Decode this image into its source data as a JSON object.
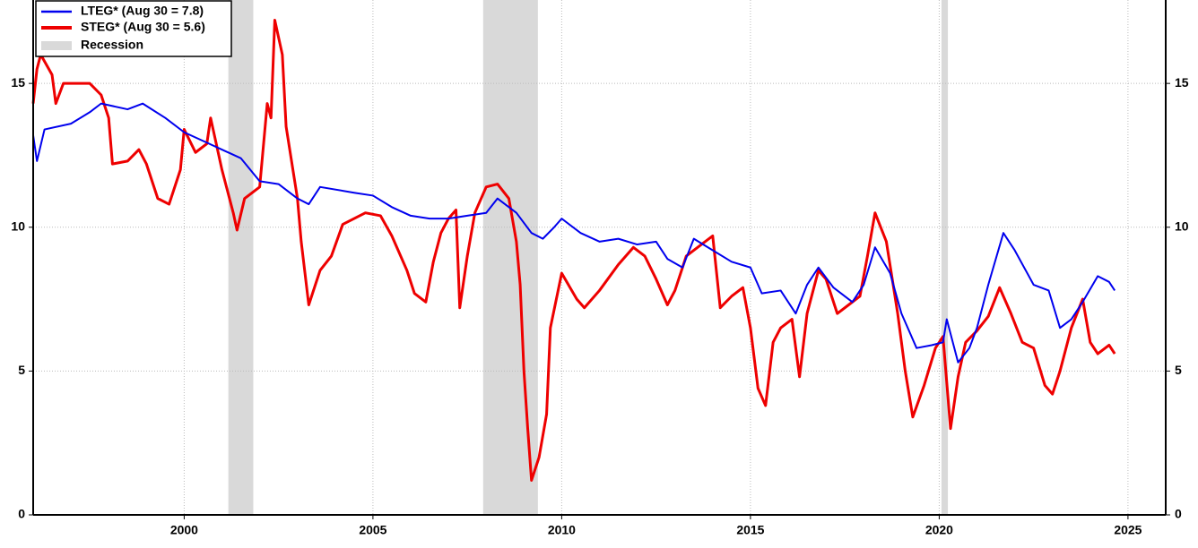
{
  "chart_data": {
    "type": "line",
    "xlim": [
      1996,
      2026
    ],
    "xticks": [
      2000,
      2005,
      2010,
      2015,
      2020,
      2025
    ],
    "ylim": [
      0,
      17.9
    ],
    "yticks": [
      0,
      5,
      10,
      15
    ],
    "grid": true,
    "legend": "upper left",
    "series": [
      {
        "name": "LTEG* (Aug 30 = 7.8)",
        "color": "#0000ee",
        "x": [
          1996.0,
          1996.1,
          1996.3,
          1997,
          1997.5,
          1997.8,
          1998.5,
          1998.9,
          1999.5,
          2000,
          2000.5,
          2001,
          2001.5,
          2002,
          2002.5,
          2003,
          2003.3,
          2003.6,
          2004.5,
          2005,
          2005.5,
          2006,
          2006.5,
          2007,
          2007.5,
          2008,
          2008.3,
          2008.8,
          2009.2,
          2009.5,
          2009.8,
          2010,
          2010.5,
          2011,
          2011.5,
          2012,
          2012.5,
          2012.8,
          2013.2,
          2013.5,
          2014,
          2014.5,
          2015,
          2015.3,
          2015.8,
          2016.2,
          2016.5,
          2016.8,
          2017.2,
          2017.7,
          2018,
          2018.3,
          2018.7,
          2019,
          2019.4,
          2019.8,
          2020.1,
          2020.2,
          2020.5,
          2020.8,
          2021,
          2021.3,
          2021.7,
          2022,
          2022.5,
          2022.9,
          2023.2,
          2023.5,
          2023.8,
          2024.2,
          2024.5,
          2024.65
        ],
        "values": [
          13.2,
          12.3,
          13.4,
          13.6,
          14.0,
          14.3,
          14.1,
          14.3,
          13.8,
          13.3,
          13.0,
          12.7,
          12.4,
          11.6,
          11.5,
          11.0,
          10.8,
          11.4,
          11.2,
          11.1,
          10.7,
          10.4,
          10.3,
          10.3,
          10.4,
          10.5,
          11.0,
          10.5,
          9.8,
          9.6,
          10.0,
          10.3,
          9.8,
          9.5,
          9.6,
          9.4,
          9.5,
          8.9,
          8.6,
          9.6,
          9.2,
          8.8,
          8.6,
          7.7,
          7.8,
          7.0,
          8.0,
          8.6,
          7.9,
          7.4,
          8.0,
          9.3,
          8.4,
          7.0,
          5.8,
          5.9,
          6.0,
          6.8,
          5.3,
          5.8,
          6.5,
          8.0,
          9.8,
          9.2,
          8.0,
          7.8,
          6.5,
          6.8,
          7.4,
          8.3,
          8.1,
          7.8
        ]
      },
      {
        "name": "STEG* (Aug 30 = 5.6)",
        "color": "#ee0000",
        "x": [
          1996.0,
          1996.1,
          1996.2,
          1996.5,
          1996.6,
          1996.8,
          1997.5,
          1997.8,
          1998,
          1998.1,
          1998.5,
          1998.8,
          1999,
          1999.3,
          1999.6,
          1999.9,
          2000,
          2000.3,
          2000.6,
          2000.7,
          2001,
          2001.3,
          2001.4,
          2001.6,
          2002,
          2002.2,
          2002.3,
          2002.4,
          2002.6,
          2002.7,
          2003,
          2003.1,
          2003.3,
          2003.6,
          2003.9,
          2004.2,
          2004.8,
          2005.2,
          2005.5,
          2005.9,
          2006.1,
          2006.4,
          2006.6,
          2006.8,
          2007,
          2007.2,
          2007.3,
          2007.5,
          2007.7,
          2008,
          2008.3,
          2008.6,
          2008.8,
          2008.9,
          2009.0,
          2009.1,
          2009.2,
          2009.4,
          2009.6,
          2009.7,
          2010.0,
          2010.4,
          2010.6,
          2011,
          2011.5,
          2011.9,
          2012.2,
          2012.5,
          2012.8,
          2013,
          2013.3,
          2013.7,
          2014,
          2014.2,
          2014.5,
          2014.8,
          2015,
          2015.2,
          2015.4,
          2015.6,
          2015.8,
          2016.1,
          2016.3,
          2016.5,
          2016.8,
          2017,
          2017.3,
          2017.6,
          2017.9,
          2018.1,
          2018.3,
          2018.6,
          2018.9,
          2019.1,
          2019.3,
          2019.6,
          2019.9,
          2020.1,
          2020.3,
          2020.5,
          2020.7,
          2021,
          2021.3,
          2021.6,
          2021.9,
          2022.2,
          2022.5,
          2022.8,
          2023.0,
          2023.2,
          2023.5,
          2023.8,
          2024.0,
          2024.2,
          2024.5,
          2024.65
        ],
        "values": [
          14.3,
          15.5,
          16.0,
          15.3,
          14.3,
          15.0,
          15.0,
          14.6,
          13.8,
          12.2,
          12.3,
          12.7,
          12.2,
          11.0,
          10.8,
          12.0,
          13.4,
          12.6,
          12.9,
          13.8,
          12.0,
          10.5,
          9.9,
          11.0,
          11.4,
          14.3,
          13.8,
          17.2,
          16.0,
          13.5,
          11.0,
          9.5,
          7.3,
          8.5,
          9.0,
          10.1,
          10.5,
          10.4,
          9.7,
          8.5,
          7.7,
          7.4,
          8.8,
          9.8,
          10.3,
          10.6,
          7.2,
          9.0,
          10.5,
          11.4,
          11.5,
          11.0,
          9.5,
          8.0,
          5.0,
          3.0,
          1.2,
          2.0,
          3.5,
          6.5,
          8.4,
          7.5,
          7.2,
          7.8,
          8.7,
          9.3,
          9.0,
          8.2,
          7.3,
          7.8,
          9.0,
          9.4,
          9.7,
          7.2,
          7.6,
          7.9,
          6.5,
          4.4,
          3.8,
          6.0,
          6.5,
          6.8,
          4.8,
          7.0,
          8.5,
          8.2,
          7.0,
          7.3,
          7.6,
          9.0,
          10.5,
          9.5,
          7.0,
          5.0,
          3.4,
          4.5,
          5.8,
          6.2,
          3.0,
          4.8,
          6.0,
          6.4,
          6.9,
          7.9,
          7.0,
          6.0,
          5.8,
          4.5,
          4.2,
          5.0,
          6.5,
          7.5,
          6.0,
          5.6,
          5.9,
          5.6
        ]
      }
    ],
    "shaded": {
      "name": "Recession",
      "color": "#d9d9d9",
      "spans": [
        [
          2001.17,
          2001.83
        ],
        [
          2007.92,
          2009.37
        ],
        [
          2020.06,
          2020.23
        ]
      ]
    }
  }
}
